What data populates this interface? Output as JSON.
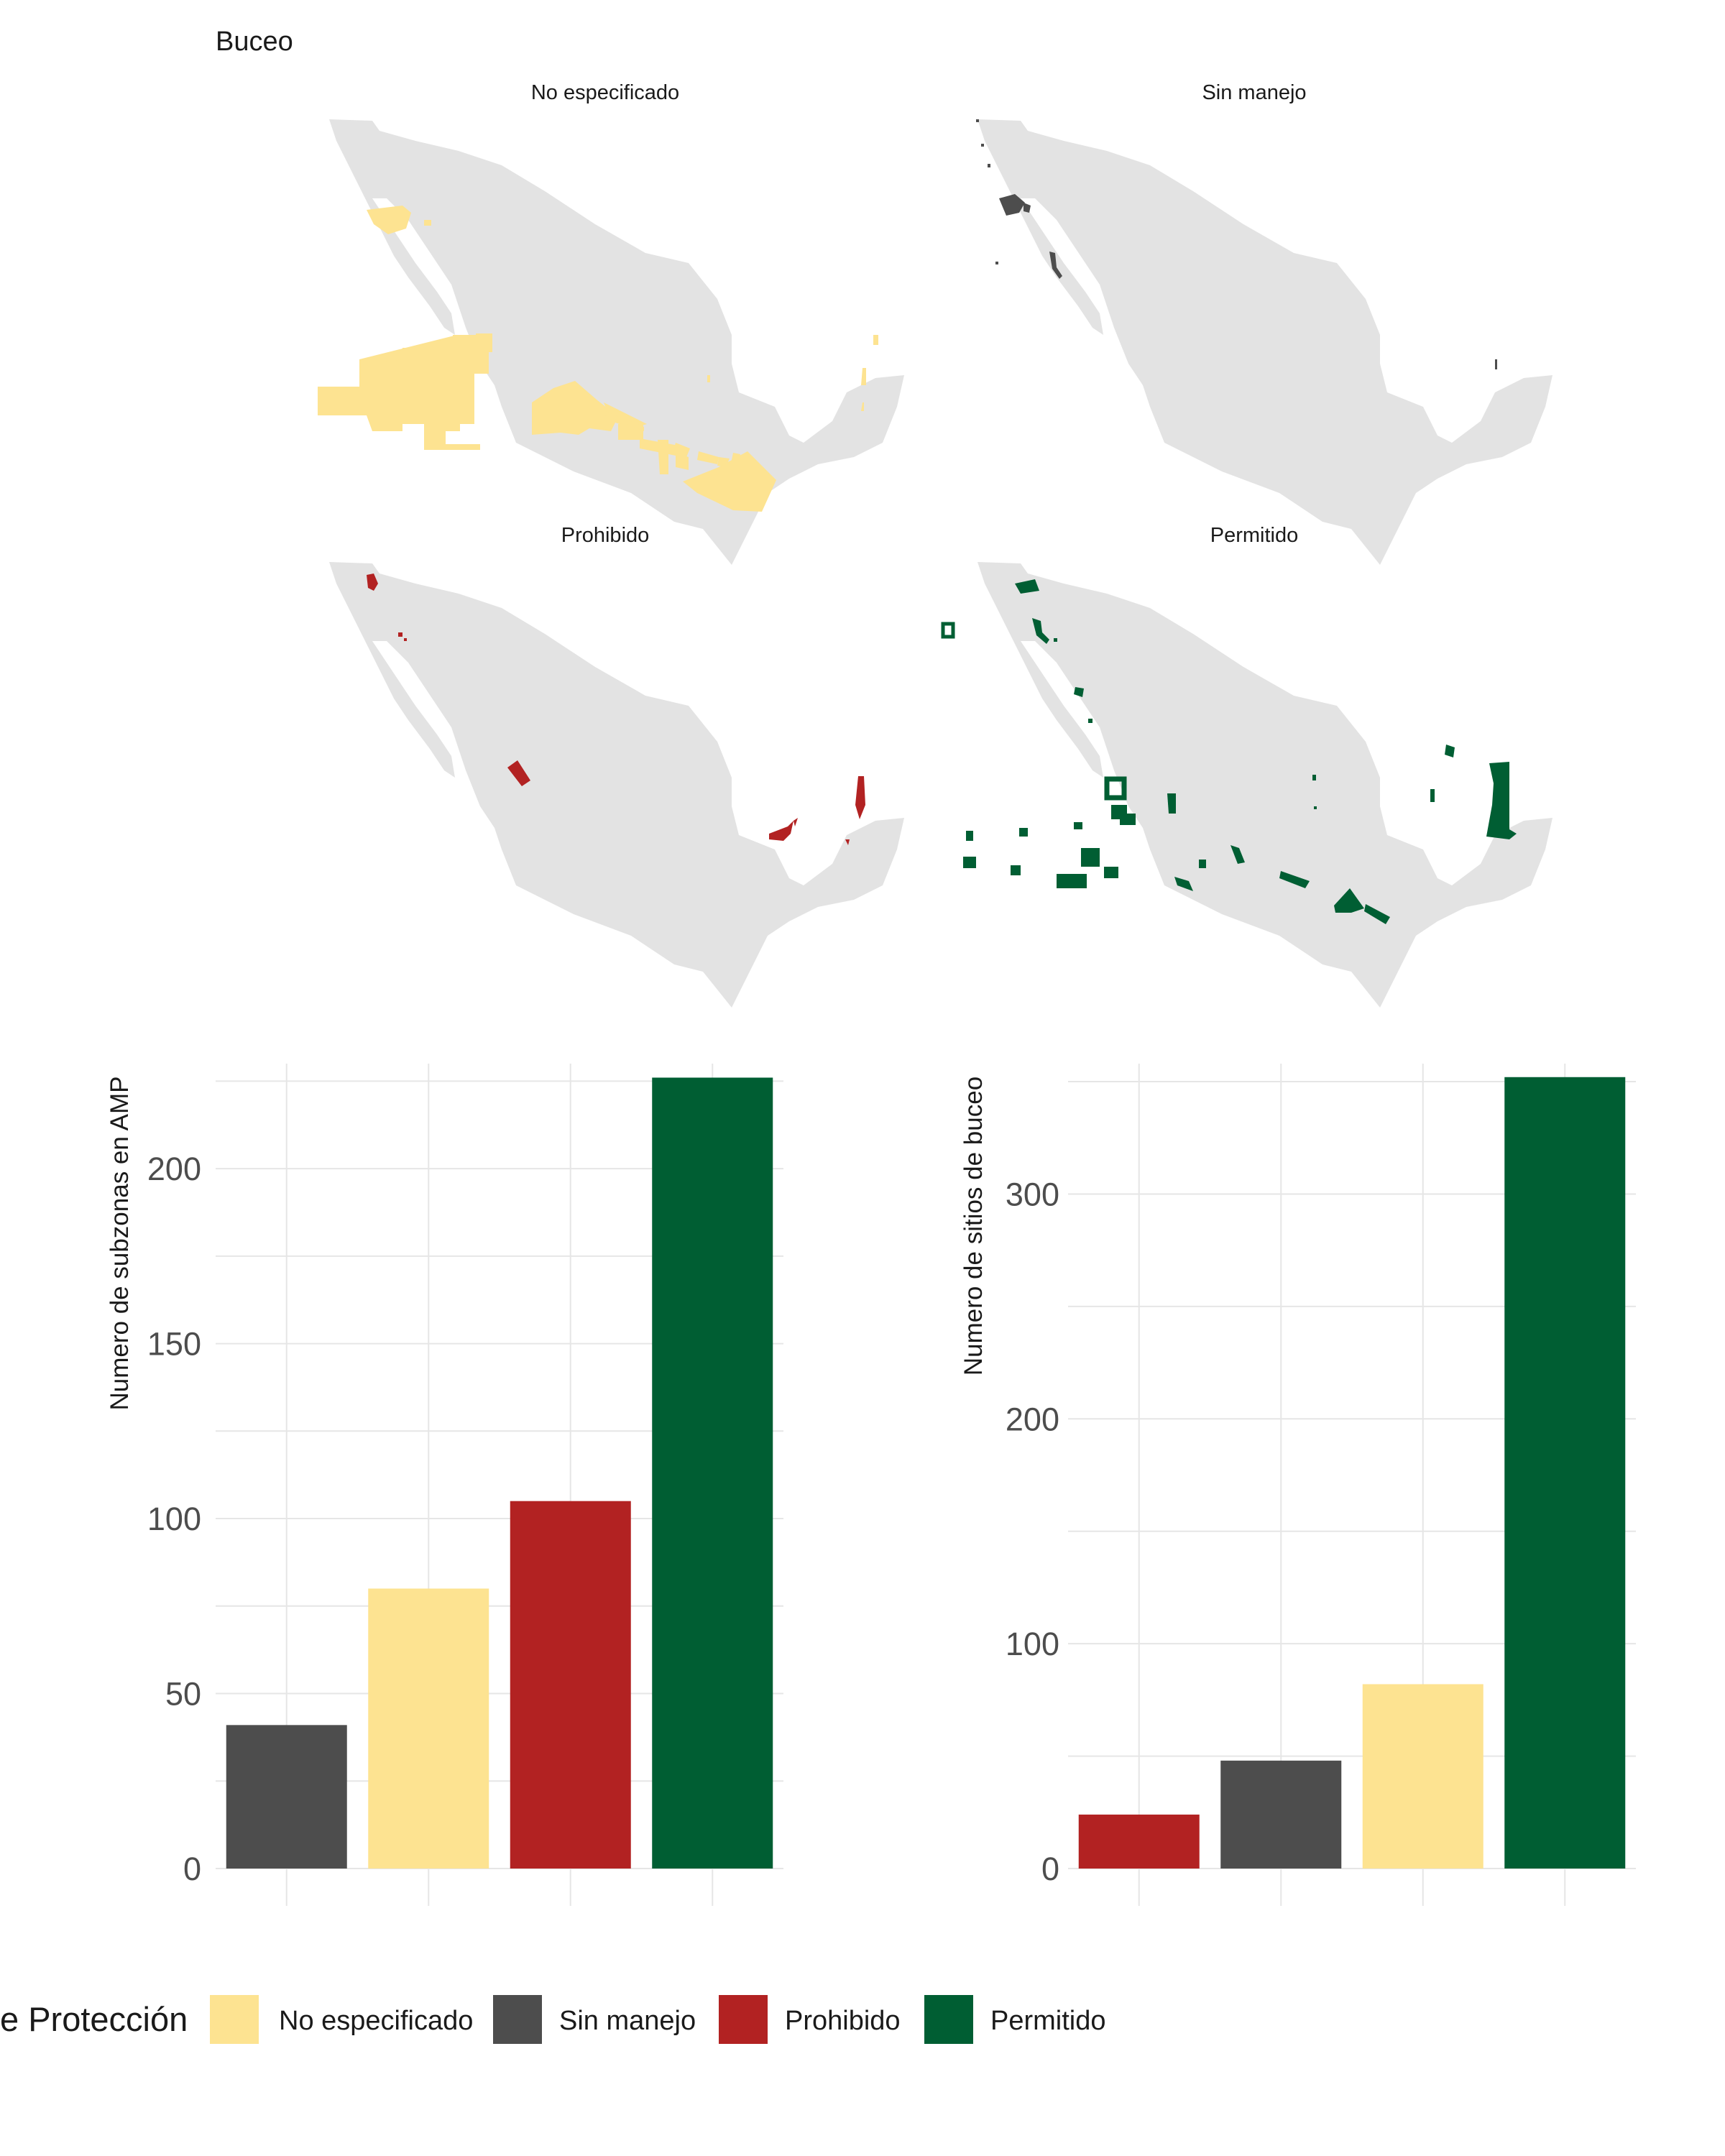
{
  "colors": {
    "no_especificado": "#FDE391",
    "sin_manejo": "#4D4D4D",
    "prohibido": "#B22222",
    "permitido": "#005E33",
    "land": "#E3E3E3",
    "grid": "#E6E6E6"
  },
  "maps": {
    "title": "Buceo",
    "panels": [
      {
        "key": "no_especificado",
        "label": "No especificado",
        "color_key": "no_especificado"
      },
      {
        "key": "sin_manejo",
        "label": "Sin manejo",
        "color_key": "sin_manejo"
      },
      {
        "key": "prohibido",
        "label": "Prohibido",
        "color_key": "prohibido"
      },
      {
        "key": "permitido",
        "label": "Permitido",
        "color_key": "permitido"
      }
    ]
  },
  "legend": {
    "title": "e Protección",
    "items": [
      {
        "label": "No especificado",
        "color_key": "no_especificado"
      },
      {
        "label": "Sin manejo",
        "color_key": "sin_manejo"
      },
      {
        "label": "Prohibido",
        "color_key": "prohibido"
      },
      {
        "label": "Permitido",
        "color_key": "permitido"
      }
    ]
  },
  "chart_data": [
    {
      "type": "bar",
      "ylabel": "Numero de subzonas en AMP",
      "xlabel": "",
      "ylim": [
        0,
        230
      ],
      "yticks": [
        0,
        50,
        100,
        150,
        200
      ],
      "categories": [
        "Sin manejo",
        "No especificado",
        "Prohibido",
        "Permitido"
      ],
      "values": [
        41,
        80,
        105,
        226
      ],
      "bar_color_keys": [
        "sin_manejo",
        "no_especificado",
        "prohibido",
        "permitido"
      ],
      "grid": true
    },
    {
      "type": "bar",
      "ylabel": "Numero de sitios de buceo",
      "xlabel": "",
      "ylim": [
        0,
        358
      ],
      "yticks": [
        0,
        100,
        200,
        300
      ],
      "categories": [
        "Prohibido",
        "Sin manejo",
        "No especificado",
        "Permitido"
      ],
      "values": [
        24,
        48,
        82,
        352
      ],
      "bar_color_keys": [
        "prohibido",
        "sin_manejo",
        "no_especificado",
        "permitido"
      ],
      "grid": true
    }
  ]
}
